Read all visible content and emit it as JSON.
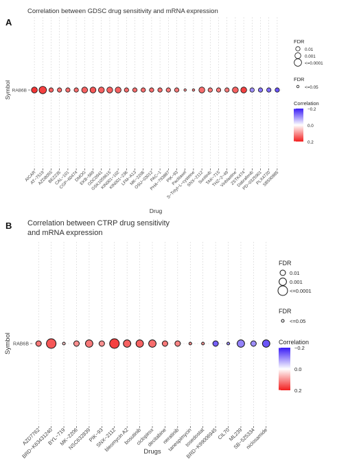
{
  "chart_data": [
    {
      "type": "scatter",
      "panel_label": "A",
      "title": "Correlation between GDSC drug sensitivity and mRNA expression",
      "xlabel": "Drug",
      "ylabel": "Symbol",
      "y_categories": [
        "RAB6B"
      ],
      "categories": [
        "AICAR",
        "AT−7519",
        "AZD8055",
        "BEZ235",
        "CAL−101",
        "CGP−60474",
        "DMOG",
        "EKB−569",
        "GDC0941",
        "GSK1059615",
        "KIN001−102",
        "KIN001−236",
        "LFM−A13",
        "MK−2206",
        "OSU−03012",
        "PAC−1",
        "PHA−793887",
        "PIK−93",
        "Paclitaxel",
        "S−Trityl−L−cysteine",
        "SNX−2112",
        "Sunitinib",
        "TAK−715",
        "THZ−2−49",
        "Vinblastine",
        "ZSTK474",
        "Dabrafenib",
        "PD−0325901",
        "PLX4720",
        "SB590885"
      ],
      "correlation": [
        0.18,
        0.17,
        0.14,
        0.13,
        0.13,
        0.13,
        0.14,
        0.15,
        0.14,
        0.14,
        0.14,
        0.13,
        0.13,
        0.13,
        0.13,
        0.13,
        0.12,
        0.12,
        0.1,
        0.11,
        0.13,
        0.12,
        0.12,
        0.12,
        0.14,
        0.17,
        -0.1,
        -0.12,
        -0.13,
        -0.15
      ],
      "fdr_class": [
        "0.001",
        "<=0.0001",
        "0.01",
        "0.01",
        "0.01",
        "0.01",
        "0.001",
        "0.001",
        "0.001",
        "0.001",
        "0.001",
        "0.01",
        "0.01",
        "0.01",
        "0.01",
        "0.01",
        "0.01",
        "0.01",
        "<=0.05",
        "<=0.05",
        "0.001",
        "0.01",
        "0.01",
        "0.01",
        "0.001",
        "0.001",
        "0.01",
        "0.01",
        "0.01",
        "0.01"
      ],
      "legend": {
        "fdr_title": "FDR",
        "fdr_labels": [
          "0.01",
          "0.001",
          "<=0.0001"
        ],
        "sig_title": "FDR",
        "sig_label": "<=0.05",
        "corr_title": "Correlation",
        "corr_ticks": [
          "−0.2",
          "0.0",
          "0.2"
        ]
      },
      "grid": true
    },
    {
      "type": "scatter",
      "panel_label": "B",
      "title": [
        "Correlation between CTRP drug sensitivity",
        "and mRNA expression"
      ],
      "xlabel": "Drugs",
      "ylabel": "Symbol",
      "y_categories": [
        "RAB6B"
      ],
      "categories": [
        "AZD7762",
        "BRD−K63431240",
        "BYL−719",
        "MK−2206",
        "NSC632839",
        "PIK−93",
        "SNX−2112",
        "bleomycin A2",
        "bosutinib",
        "ciclopirox",
        "decitabine",
        "neratinib",
        "tanespimycin",
        "tosedostat",
        "BRD−K99006945",
        "CIL70",
        "ML239",
        "SB−525334",
        "niclosamide"
      ],
      "correlation": [
        0.12,
        0.15,
        0.05,
        0.1,
        0.12,
        0.1,
        0.17,
        0.14,
        0.14,
        0.13,
        0.12,
        0.11,
        0.1,
        0.09,
        -0.14,
        -0.1,
        -0.11,
        -0.1,
        -0.15
      ],
      "fdr_class": [
        "0.01",
        "<=0.0001",
        "<=0.05",
        "0.01",
        "0.001",
        "0.01",
        "<=0.0001",
        "0.001",
        "0.001",
        "0.001",
        "0.01",
        "0.01",
        "<=0.05",
        "<=0.05",
        "0.01",
        "<=0.05",
        "0.001",
        "0.01",
        "0.001"
      ],
      "legend": {
        "fdr_title": "FDR",
        "fdr_labels": [
          "0.01",
          "0.001",
          "<=0.0001"
        ],
        "sig_title": "FDR",
        "sig_label": "<=0.05",
        "corr_title": "Correlation",
        "corr_ticks": [
          "−0.2",
          "0.0",
          "0.2"
        ]
      },
      "grid": true
    }
  ]
}
